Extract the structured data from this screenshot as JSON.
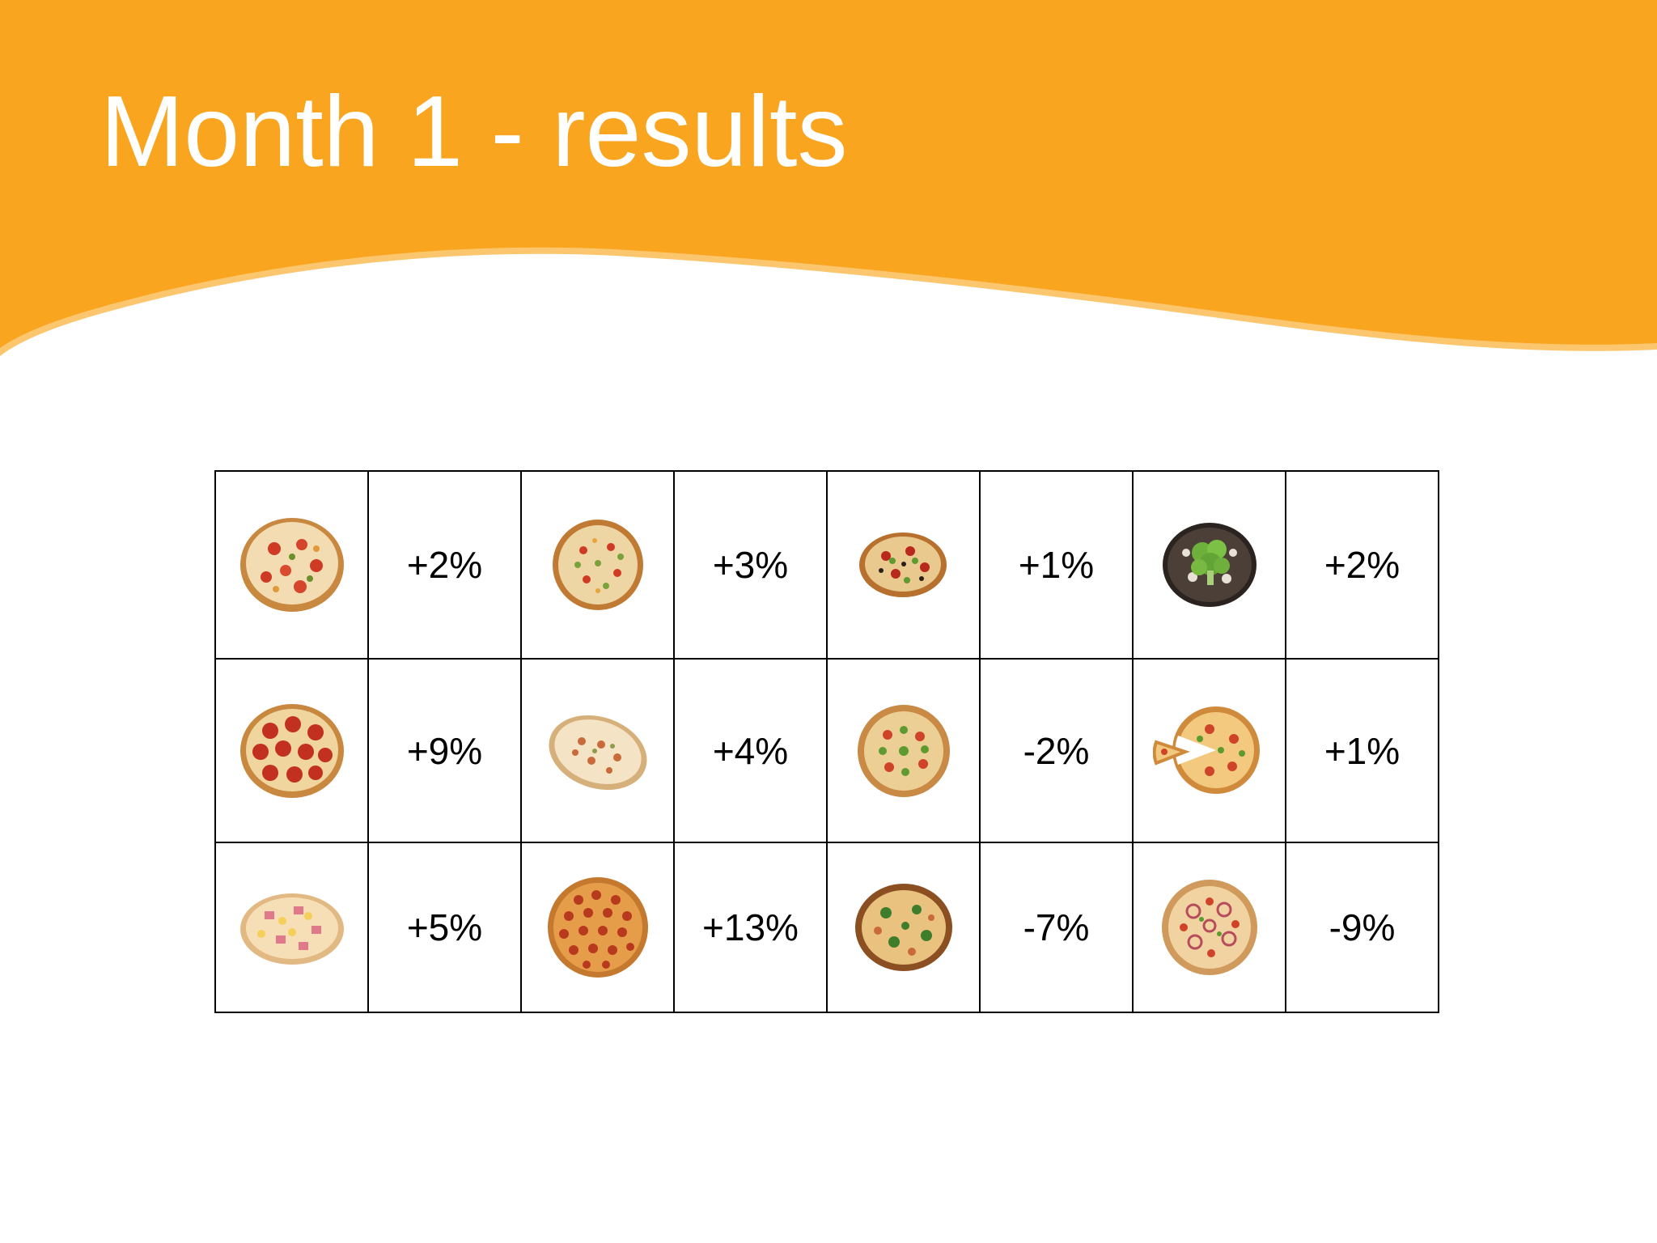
{
  "slide": {
    "title": "Month 1 - results",
    "colors": {
      "banner": "#F9A51F",
      "banner_edge": "#FBC66D",
      "title_text": "#FFFFFF",
      "grid_lines": "#000000"
    }
  },
  "results": {
    "rows": [
      [
        {
          "pizza": "mixed-topping-pizza-icon",
          "change": "+2%"
        },
        {
          "pizza": "veggie-pizza-icon",
          "change": "+3%"
        },
        {
          "pizza": "supreme-pizza-icon",
          "change": "+1%"
        },
        {
          "pizza": "broccoli-pizza-icon",
          "change": "+2%"
        }
      ],
      [
        {
          "pizza": "pepperoni-pizza-icon",
          "change": "+9%"
        },
        {
          "pizza": "chicken-pizza-icon",
          "change": "+4%"
        },
        {
          "pizza": "vegetable-pizza-icon",
          "change": "-2%"
        },
        {
          "pizza": "sliced-pizza-icon",
          "change": "+1%"
        }
      ],
      [
        {
          "pizza": "hawaiian-pizza-icon",
          "change": "+5%"
        },
        {
          "pizza": "mini-pepperoni-pizza-icon",
          "change": "+13%"
        },
        {
          "pizza": "spinach-pizza-icon",
          "change": "-7%"
        },
        {
          "pizza": "onion-pizza-icon",
          "change": "-9%"
        }
      ]
    ]
  }
}
